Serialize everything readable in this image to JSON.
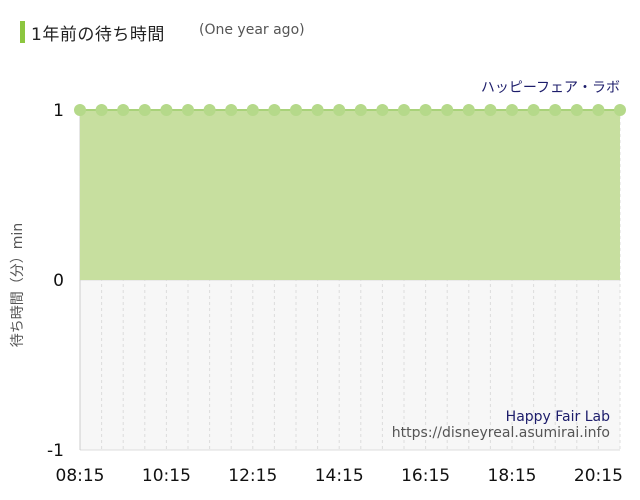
{
  "header": {
    "title": "1年前の待ち時間",
    "subtitle": "(One year ago)"
  },
  "colors": {
    "accent": "#8cc63f",
    "area_fill": "#c7df9f",
    "marker": "#b5d98a",
    "plot_background": "#f7f7f7"
  },
  "chart_data": {
    "type": "area",
    "series": [
      {
        "name": "ハッピーフェア・ラボ",
        "values": [
          1,
          1,
          1,
          1,
          1,
          1,
          1,
          1,
          1,
          1,
          1,
          1,
          1,
          1,
          1,
          1,
          1,
          1,
          1,
          1,
          1,
          1,
          1,
          1,
          1,
          1
        ]
      }
    ],
    "x": [
      "08:15",
      "08:45",
      "09:15",
      "09:45",
      "10:15",
      "10:45",
      "11:15",
      "11:45",
      "12:15",
      "12:45",
      "13:15",
      "13:45",
      "14:15",
      "14:45",
      "15:15",
      "15:45",
      "16:15",
      "16:45",
      "17:15",
      "17:45",
      "18:15",
      "18:45",
      "19:15",
      "19:45",
      "20:15",
      "20:45"
    ],
    "xticks": [
      "08:15",
      "10:15",
      "12:15",
      "14:15",
      "16:15",
      "18:15",
      "20:15"
    ],
    "yticks": [
      "1",
      "0",
      "-1"
    ],
    "ylim": [
      -1,
      1
    ],
    "ylabel": "待ち時間（分）min",
    "grid": true,
    "annotations": {
      "attraction_en": "Happy Fair Lab",
      "source_url": "https://disneyreal.asumirai.info"
    }
  }
}
